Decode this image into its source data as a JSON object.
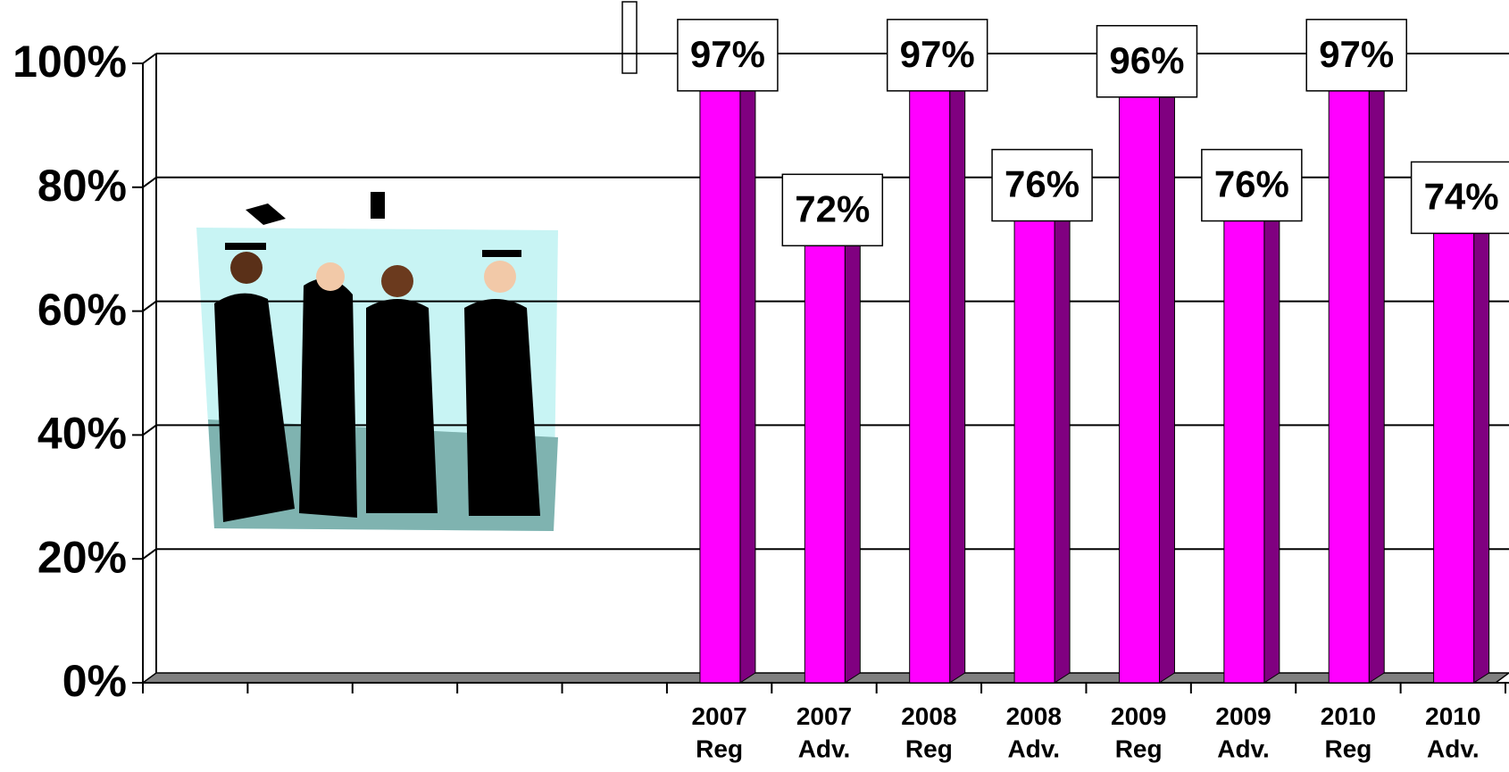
{
  "chart_data": {
    "type": "bar",
    "categories": [
      null,
      null,
      null,
      null,
      null,
      "2007\nReg",
      "2007\nAdv.",
      "2008\nReg",
      "2008\nAdv.",
      "2009\nReg",
      "2009\nAdv.",
      "2010\nReg",
      "2010\nAdv."
    ],
    "values": [
      null,
      null,
      null,
      null,
      null,
      97,
      72,
      97,
      76,
      96,
      76,
      97,
      74
    ],
    "value_labels": [
      null,
      null,
      null,
      null,
      null,
      "97%",
      "72%",
      "97%",
      "76%",
      "96%",
      "76%",
      "97%",
      "74%"
    ],
    "color": "#ff00ff",
    "side_color": "#800080",
    "ylim": [
      0,
      100
    ],
    "yticks": [
      {
        "value": 0,
        "label": "0%"
      },
      {
        "value": 20,
        "label": "20%"
      },
      {
        "value": 40,
        "label": "40%"
      },
      {
        "value": 60,
        "label": "60%"
      },
      {
        "value": 80,
        "label": "80%"
      },
      {
        "value": 100,
        "label": "100%"
      }
    ],
    "grid": true
  }
}
